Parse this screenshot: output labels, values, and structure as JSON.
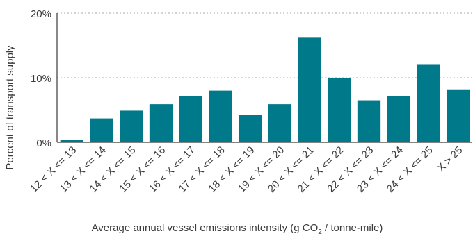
{
  "chart_data": {
    "type": "bar",
    "xlabel": {
      "before_sub": "Average annual vessel emissions intensity (g CO",
      "sub": "2",
      "after_sub": " / tonne-mile)"
    },
    "ylabel": "Percent of transport supply",
    "ylim": [
      0,
      20
    ],
    "yticks": [
      "0%",
      "10%",
      "20%"
    ],
    "ytick_values": [
      0,
      10,
      20
    ],
    "grid": "horizontal-dotted",
    "bar_color": "#007a8a",
    "categories": [
      "12 < X <= 13",
      "13 < X <= 14",
      "14 < X <= 15",
      "15 < X <= 16",
      "16 < X <= 17",
      "17 < X <= 18",
      "18 < X <= 19",
      "19 < X <= 20",
      "20 < X <= 21",
      "21 < X <= 22",
      "22 < X <= 23",
      "23 < X <= 24",
      "24 < X <= 25",
      "X > 25"
    ],
    "values": [
      0.4,
      3.7,
      4.9,
      5.9,
      7.2,
      8.0,
      4.2,
      5.9,
      16.2,
      10.0,
      6.5,
      7.2,
      12.1,
      8.2
    ]
  }
}
